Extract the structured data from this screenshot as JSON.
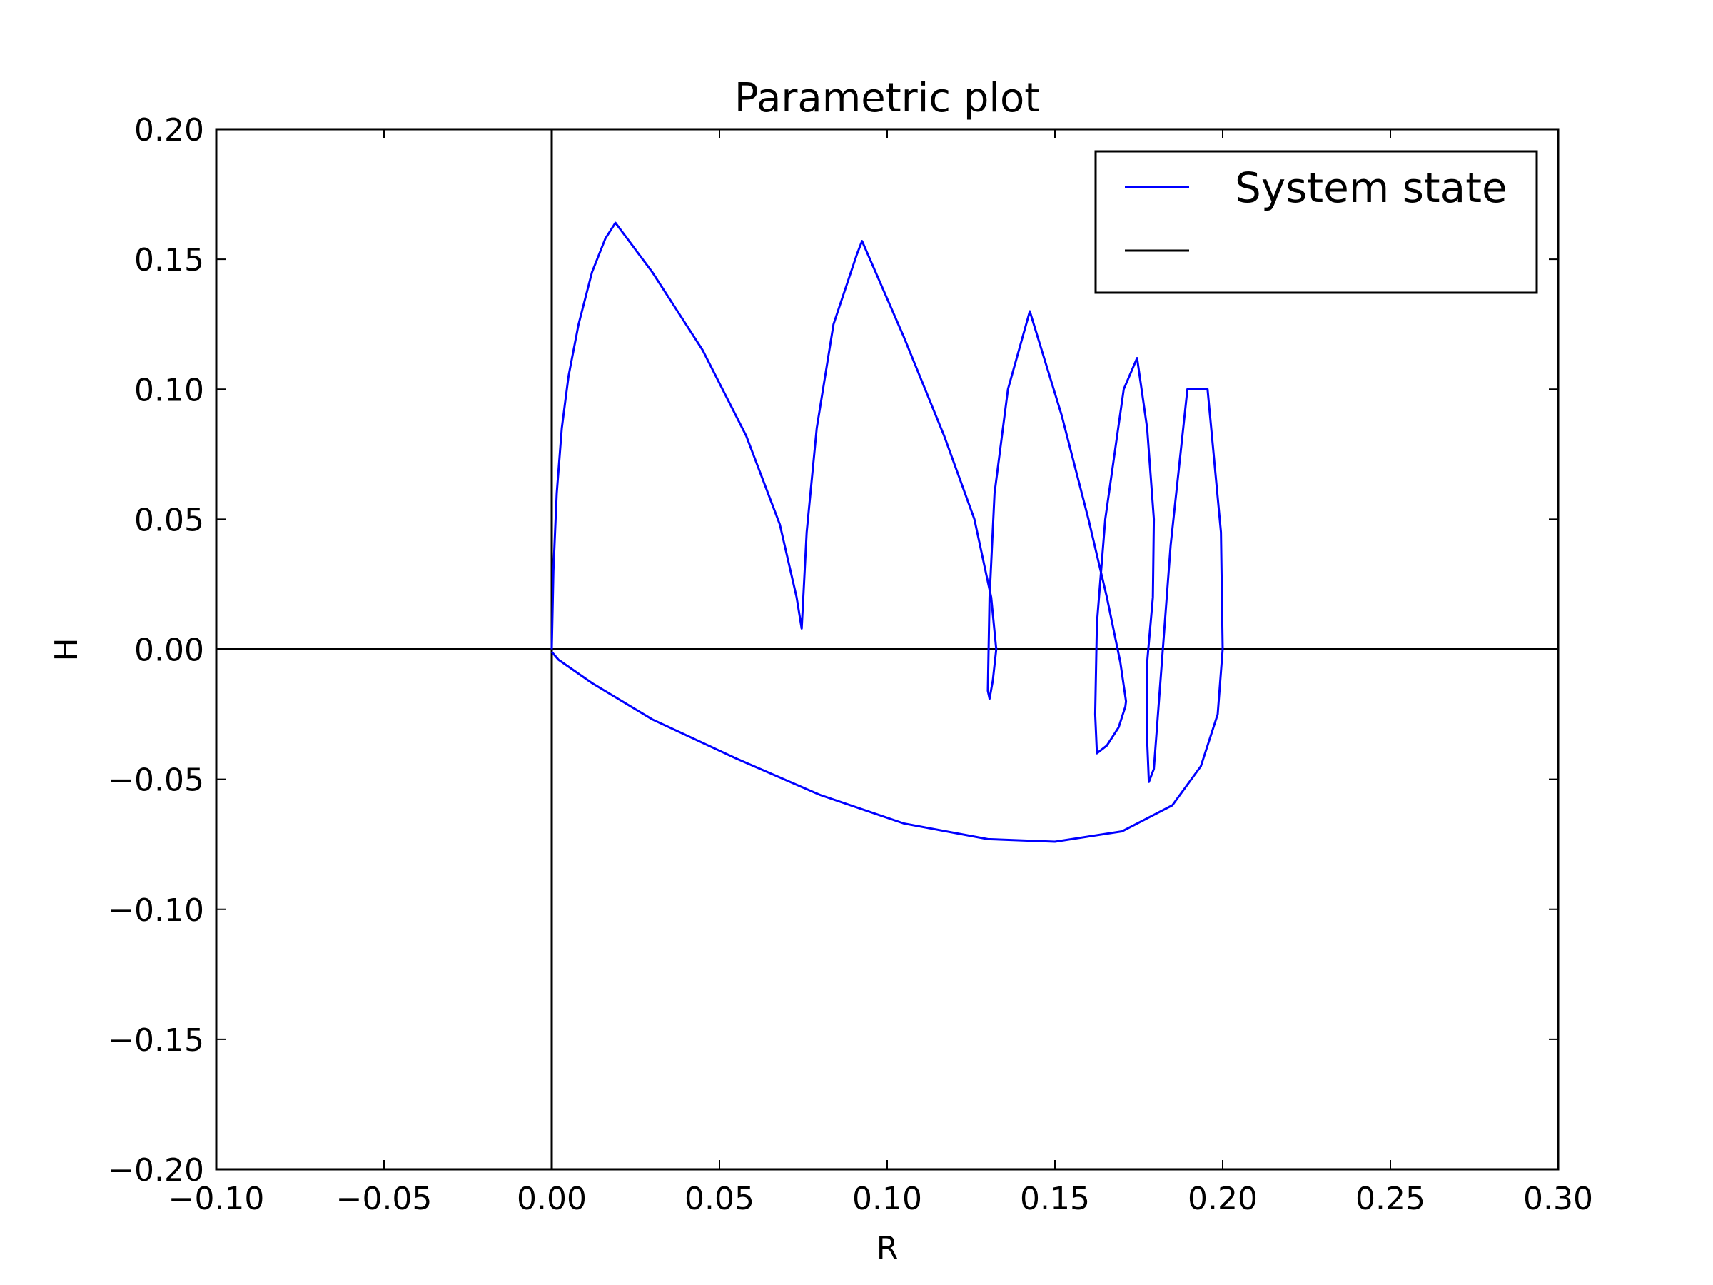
{
  "chart_data": {
    "type": "line",
    "title": "Parametric plot",
    "xlabel": "R",
    "ylabel": "H",
    "xlim": [
      -0.1,
      0.3
    ],
    "ylim": [
      -0.2,
      0.2
    ],
    "xticks": [
      -0.1,
      -0.05,
      0.0,
      0.05,
      0.1,
      0.15,
      0.2,
      0.25,
      0.3
    ],
    "yticks": [
      -0.2,
      -0.15,
      -0.1,
      -0.05,
      0.0,
      0.05,
      0.1,
      0.15,
      0.2
    ],
    "xtick_labels": [
      "−0.10",
      "−0.05",
      "0.00",
      "0.05",
      "0.10",
      "0.15",
      "0.20",
      "0.25",
      "0.30"
    ],
    "ytick_labels": [
      "−0.20",
      "−0.15",
      "−0.10",
      "−0.05",
      "0.00",
      "0.05",
      "0.10",
      "0.15",
      "0.20"
    ],
    "grid": false,
    "legend_position": "top-right",
    "series": [
      {
        "name": "System state",
        "color": "#0000ff",
        "x": [
          0.0,
          0.0005,
          0.0015,
          0.003,
          0.005,
          0.008,
          0.012,
          0.016,
          0.019,
          0.03,
          0.045,
          0.058,
          0.068,
          0.073,
          0.0745,
          0.0745,
          0.076,
          0.079,
          0.084,
          0.091,
          0.0925,
          0.105,
          0.117,
          0.126,
          0.131,
          0.1325,
          0.1315,
          0.1305,
          0.13,
          0.1305,
          0.132,
          0.136,
          0.1425,
          0.152,
          0.16,
          0.1655,
          0.1695,
          0.1712,
          0.171,
          0.169,
          0.1655,
          0.1625,
          0.162,
          0.1625,
          0.165,
          0.1705,
          0.1745,
          0.1775,
          0.1795,
          0.1792,
          0.1775,
          0.1775,
          0.178,
          0.1795,
          0.1845,
          0.1895,
          0.1955,
          0.1995,
          0.2,
          0.1985,
          0.1935,
          0.185,
          0.17,
          0.15,
          0.13,
          0.105,
          0.08,
          0.055,
          0.03,
          0.012,
          0.002,
          0.0
        ],
        "y": [
          0.0,
          0.03,
          0.06,
          0.085,
          0.105,
          0.125,
          0.145,
          0.158,
          0.164,
          0.145,
          0.115,
          0.082,
          0.048,
          0.02,
          0.008,
          0.008,
          0.045,
          0.085,
          0.125,
          0.152,
          0.157,
          0.12,
          0.082,
          0.05,
          0.02,
          0.0,
          -0.012,
          -0.019,
          -0.016,
          0.02,
          0.06,
          0.1,
          0.13,
          0.09,
          0.05,
          0.02,
          -0.005,
          -0.02,
          -0.022,
          -0.03,
          -0.037,
          -0.04,
          -0.025,
          0.01,
          0.05,
          0.1,
          0.112,
          0.085,
          0.05,
          0.02,
          -0.005,
          -0.035,
          -0.051,
          -0.046,
          0.04,
          0.1,
          0.1,
          0.045,
          0.0,
          -0.025,
          -0.045,
          -0.06,
          -0.07,
          -0.074,
          -0.073,
          -0.067,
          -0.056,
          -0.042,
          -0.027,
          -0.013,
          -0.004,
          -0.001
        ]
      },
      {
        "name": "",
        "color": "#000000",
        "description_axes": "horizontal line at H=0 and vertical line at R=0"
      }
    ]
  }
}
